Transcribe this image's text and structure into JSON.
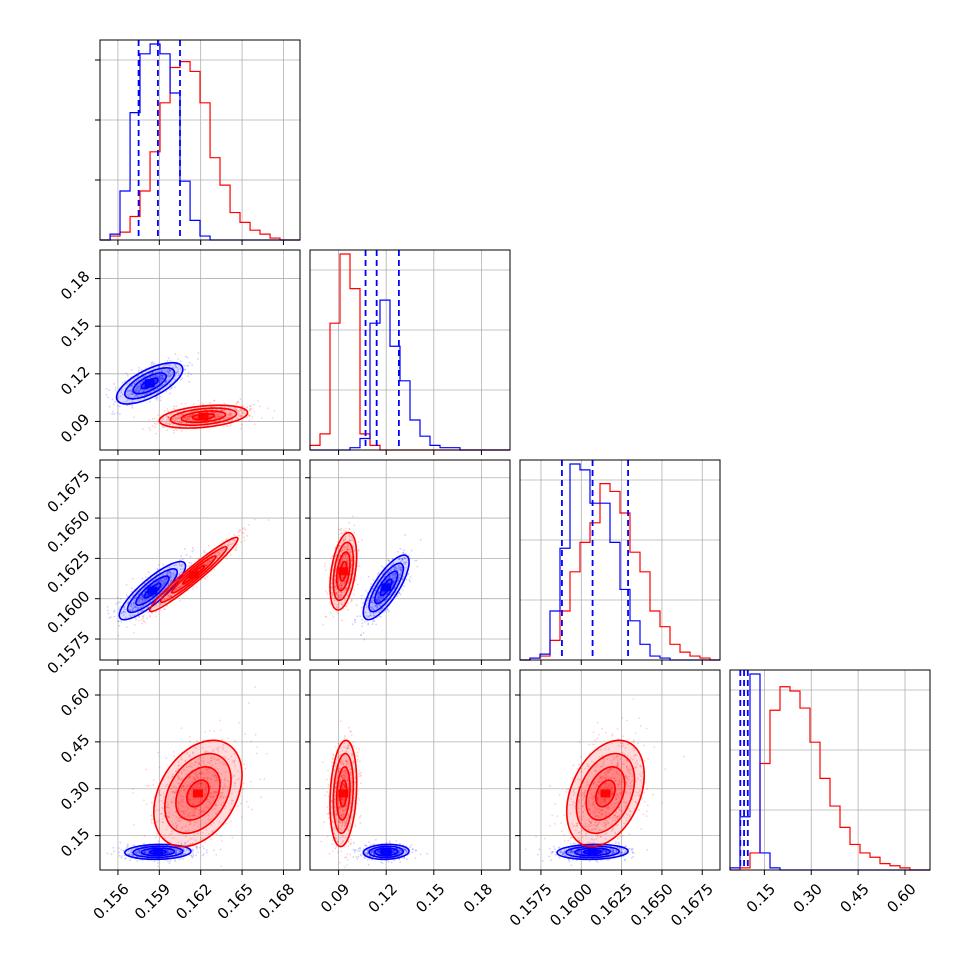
{
  "chart_data": {
    "type": "corner",
    "grid": true,
    "series": [
      {
        "name": "",
        "color": "#0000ff"
      },
      {
        "name": "",
        "color": "#ff0000"
      }
    ],
    "parameters": [
      {
        "index": 0,
        "range": [
          0.1547,
          0.1692
        ],
        "ticks": [
          0.156,
          0.159,
          0.162,
          0.165,
          0.168
        ],
        "tick_labels": [
          "0.156",
          "0.159",
          "0.162",
          "0.165",
          "0.168"
        ]
      },
      {
        "index": 1,
        "range": [
          0.072,
          0.198
        ],
        "ticks": [
          0.09,
          0.12,
          0.15,
          0.18
        ],
        "tick_labels": [
          "0.09",
          "0.12",
          "0.15",
          "0.18"
        ]
      },
      {
        "index": 2,
        "range": [
          0.1562,
          0.1686
        ],
        "ticks": [
          0.1575,
          0.16,
          0.1625,
          0.165,
          0.1675
        ],
        "tick_labels": [
          "0.1575",
          "0.1600",
          "0.1625",
          "0.1650",
          "0.1675"
        ]
      },
      {
        "index": 3,
        "range": [
          0.04,
          0.68
        ],
        "ticks": [
          0.15,
          0.3,
          0.45,
          0.6
        ],
        "tick_labels": [
          "0.15",
          "0.30",
          "0.45",
          "0.60"
        ]
      }
    ],
    "quantile_lines": {
      "color": "#0000ff",
      "values": [
        [
          0.1575,
          0.1589,
          0.1605
        ],
        [
          0.107,
          0.114,
          0.128
        ],
        [
          0.1588,
          0.1607,
          0.1629
        ],
        [
          0.073,
          0.085,
          0.097
        ]
      ]
    },
    "histograms": [
      {
        "param": 0,
        "edges": [
          0.1547,
          0.15543,
          0.15615,
          0.15688,
          0.1576,
          0.15833,
          0.15905,
          0.15978,
          0.1605,
          0.16123,
          0.16195,
          0.16268,
          0.1634,
          0.16413,
          0.16485,
          0.16558,
          0.1663,
          0.16703,
          0.16775,
          0.16848,
          0.1692
        ],
        "counts": {
          "blue": [
            0,
            3,
            25,
            65,
            95,
            100,
            95,
            75,
            30,
            10,
            2,
            0,
            0,
            0,
            0,
            0,
            0,
            0,
            0,
            0
          ],
          "red": [
            0,
            2,
            4,
            12,
            25,
            45,
            70,
            88,
            91,
            86,
            70,
            42,
            28,
            14,
            9,
            5,
            3,
            1,
            0,
            0
          ]
        }
      },
      {
        "param": 1,
        "edges": [
          0.072,
          0.0783,
          0.0846,
          0.0909,
          0.0972,
          0.1035,
          0.1098,
          0.1161,
          0.1224,
          0.1287,
          0.135,
          0.1413,
          0.1476,
          0.1539,
          0.1602,
          0.1665,
          0.1728,
          0.1791,
          0.1854,
          0.1917,
          0.198
        ],
        "counts": {
          "blue": [
            0,
            0,
            0,
            0,
            1,
            5,
            55,
            65,
            45,
            30,
            13,
            6,
            2,
            1,
            1,
            0,
            0,
            0,
            0,
            0
          ],
          "red": [
            2,
            7,
            55,
            85,
            70,
            7,
            2,
            0,
            0,
            0,
            0,
            0,
            0,
            0,
            0,
            0,
            0,
            0,
            0,
            0
          ]
        }
      },
      {
        "param": 2,
        "edges": [
          0.1562,
          0.15682,
          0.15744,
          0.15806,
          0.15868,
          0.1593,
          0.15992,
          0.16054,
          0.16116,
          0.16178,
          0.1624,
          0.16302,
          0.16364,
          0.16426,
          0.16488,
          0.1655,
          0.16612,
          0.16674,
          0.16736,
          0.16798,
          0.1686
        ],
        "counts": {
          "blue": [
            0,
            1,
            3,
            25,
            57,
            100,
            97,
            80,
            80,
            60,
            36,
            20,
            8,
            2,
            1,
            0,
            0,
            0,
            0,
            0
          ],
          "red": [
            0,
            1,
            2,
            10,
            25,
            45,
            60,
            70,
            90,
            86,
            75,
            55,
            45,
            25,
            17,
            8,
            4,
            2,
            1,
            0
          ]
        }
      },
      {
        "param": 3,
        "edges": [
          0.04,
          0.072,
          0.104,
          0.136,
          0.168,
          0.2,
          0.232,
          0.264,
          0.296,
          0.328,
          0.36,
          0.392,
          0.424,
          0.456,
          0.488,
          0.52,
          0.552,
          0.584,
          0.616,
          0.648,
          0.68
        ],
        "counts": {
          "blue": [
            1,
            25,
            92,
            8,
            1,
            0,
            0,
            0,
            0,
            0,
            0,
            0,
            0,
            0,
            0,
            0,
            0,
            0,
            0,
            0
          ],
          "red": [
            0,
            1,
            8,
            50,
            75,
            86,
            84,
            76,
            60,
            43,
            30,
            20,
            12,
            8,
            6,
            3,
            2,
            1,
            0,
            0
          ]
        }
      }
    ],
    "contour_panels": [
      {
        "x_param": 0,
        "y_param": 1,
        "blobs": [
          {
            "color": "#0000ff",
            "cx": 0.1583,
            "cy": 0.114,
            "rx": 0.0012,
            "ry": 0.0065,
            "rho": 0.68,
            "levels": [
              0.5,
              1.0,
              1.5,
              2.0
            ]
          },
          {
            "color": "#ff0000",
            "cx": 0.1622,
            "cy": 0.093,
            "rx": 0.0016,
            "ry": 0.0036,
            "rho": 0.35,
            "levels": [
              0.5,
              1.0,
              1.5,
              2.0
            ]
          }
        ]
      },
      {
        "x_param": 0,
        "y_param": 2,
        "blobs": [
          {
            "color": "#0000ff",
            "cx": 0.1585,
            "cy": 0.1605,
            "rx": 0.0012,
            "ry": 0.0009,
            "rho": 0.85,
            "levels": [
              0.5,
              1.0,
              1.5,
              2.0
            ]
          },
          {
            "color": "#ff0000",
            "cx": 0.1615,
            "cy": 0.1615,
            "rx": 0.0016,
            "ry": 0.00115,
            "rho": 0.965,
            "levels": [
              0.5,
              1.0,
              1.5,
              2.0
            ]
          }
        ]
      },
      {
        "x_param": 1,
        "y_param": 2,
        "blobs": [
          {
            "color": "#ff0000",
            "cx": 0.093,
            "cy": 0.1617,
            "rx": 0.0042,
            "ry": 0.0012,
            "rho": 0.4,
            "levels": [
              0.5,
              1.0,
              1.5,
              2.0
            ]
          },
          {
            "color": "#0000ff",
            "cx": 0.12,
            "cy": 0.1607,
            "rx": 0.0072,
            "ry": 0.001,
            "rho": 0.78,
            "levels": [
              0.5,
              1.0,
              1.5,
              2.0
            ]
          }
        ]
      },
      {
        "x_param": 0,
        "y_param": 3,
        "blobs": [
          {
            "color": "#0000ff",
            "cx": 0.1589,
            "cy": 0.098,
            "rx": 0.0012,
            "ry": 0.012,
            "rho": 0.1,
            "levels": [
              0.5,
              1.0,
              1.5,
              2.0
            ]
          },
          {
            "color": "#ff0000",
            "cx": 0.1618,
            "cy": 0.285,
            "rx": 0.0016,
            "ry": 0.085,
            "rho": 0.35,
            "levels": [
              0.5,
              1.0,
              1.5,
              2.0
            ]
          }
        ]
      },
      {
        "x_param": 1,
        "y_param": 3,
        "blobs": [
          {
            "color": "#ff0000",
            "cx": 0.093,
            "cy": 0.285,
            "rx": 0.0042,
            "ry": 0.085,
            "rho": 0.2,
            "levels": [
              0.5,
              1.0,
              1.5,
              2.0
            ]
          },
          {
            "color": "#0000ff",
            "cx": 0.12,
            "cy": 0.098,
            "rx": 0.0072,
            "ry": 0.012,
            "rho": 0.1,
            "levels": [
              0.5,
              1.0,
              1.5,
              2.0
            ]
          }
        ]
      },
      {
        "x_param": 2,
        "y_param": 3,
        "blobs": [
          {
            "color": "#0000ff",
            "cx": 0.1607,
            "cy": 0.098,
            "rx": 0.0011,
            "ry": 0.012,
            "rho": 0.1,
            "levels": [
              0.5,
              1.0,
              1.5,
              2.0
            ]
          },
          {
            "color": "#ff0000",
            "cx": 0.1615,
            "cy": 0.285,
            "rx": 0.0012,
            "ry": 0.085,
            "rho": 0.35,
            "levels": [
              0.5,
              1.0,
              1.5,
              2.0
            ]
          }
        ]
      }
    ]
  }
}
